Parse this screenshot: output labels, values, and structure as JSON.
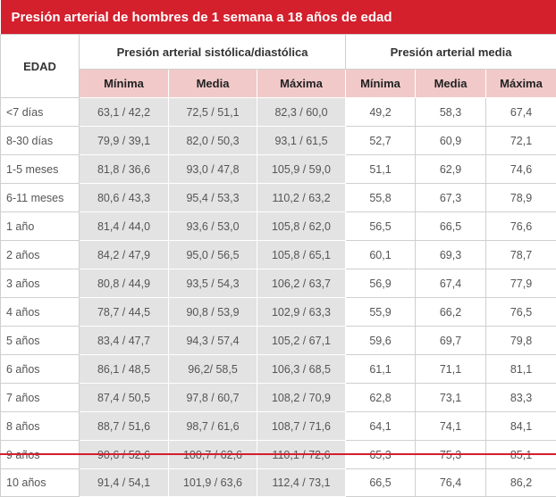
{
  "title": "Presión arterial de hombres de 1 semana a 18 años de edad",
  "headers": {
    "edad": "EDAD",
    "group_sys": "Presión arterial sistólica/diastólica",
    "group_mean": "Presión arterial media",
    "sub": [
      "Mínima",
      "Media",
      "Máxima",
      "Mínima",
      "Media",
      "Máxima"
    ]
  },
  "rows": [
    {
      "age": "<7 días",
      "sys_min": "63,1 / 42,2",
      "sys_med": "72,5 / 51,1",
      "sys_max": "82,3 / 60,0",
      "m_min": "49,2",
      "m_med": "58,3",
      "m_max": "67,4"
    },
    {
      "age": "8-30 días",
      "sys_min": "79,9 / 39,1",
      "sys_med": "82,0 / 50,3",
      "sys_max": "93,1 / 61,5",
      "m_min": "52,7",
      "m_med": "60,9",
      "m_max": "72,1"
    },
    {
      "age": "1-5 meses",
      "sys_min": "81,8 / 36,6",
      "sys_med": "93,0 / 47,8",
      "sys_max": "105,9 / 59,0",
      "m_min": "51,1",
      "m_med": "62,9",
      "m_max": "74,6"
    },
    {
      "age": "6-11 meses",
      "sys_min": "80,6 / 43,3",
      "sys_med": "95,4 / 53,3",
      "sys_max": "110,2 / 63,2",
      "m_min": "55,8",
      "m_med": "67,3",
      "m_max": "78,9"
    },
    {
      "age": "1 año",
      "sys_min": "81,4 / 44,0",
      "sys_med": "93,6 / 53,0",
      "sys_max": "105,8 / 62,0",
      "m_min": "56,5",
      "m_med": "66,5",
      "m_max": "76,6"
    },
    {
      "age": "2 años",
      "sys_min": "84,2 / 47,9",
      "sys_med": "95,0 / 56,5",
      "sys_max": "105,8 / 65,1",
      "m_min": "60,1",
      "m_med": "69,3",
      "m_max": "78,7"
    },
    {
      "age": "3 años",
      "sys_min": "80,8 / 44,9",
      "sys_med": "93,5 / 54,3",
      "sys_max": "106,2 / 63,7",
      "m_min": "56,9",
      "m_med": "67,4",
      "m_max": "77,9"
    },
    {
      "age": "4 años",
      "sys_min": "78,7 / 44,5",
      "sys_med": "90,8 / 53,9",
      "sys_max": "102,9 / 63,3",
      "m_min": "55,9",
      "m_med": "66,2",
      "m_max": "76,5"
    },
    {
      "age": "5 años",
      "sys_min": "83,4 / 47,7",
      "sys_med": "94,3 / 57,4",
      "sys_max": "105,2 / 67,1",
      "m_min": "59,6",
      "m_med": "69,7",
      "m_max": "79,8"
    },
    {
      "age": "6 años",
      "sys_min": "86,1 / 48,5",
      "sys_med": "96,2/ 58,5",
      "sys_max": "106,3 / 68,5",
      "m_min": "61,1",
      "m_med": "71,1",
      "m_max": "81,1"
    },
    {
      "age": "7 años",
      "sys_min": "87,4 / 50,5",
      "sys_med": "97,8 / 60,7",
      "sys_max": "108,2 / 70,9",
      "m_min": "62,8",
      "m_med": "73,1",
      "m_max": "83,3"
    },
    {
      "age": "8 años",
      "sys_min": "88,7 / 51,6",
      "sys_med": "98,7 / 61,6",
      "sys_max": "108,7 / 71,6",
      "m_min": "64,1",
      "m_med": "74,1",
      "m_max": "84,1"
    },
    {
      "age": "9 años",
      "sys_min": "90,6 / 52,6",
      "sys_med": "100,7 / 62,6",
      "sys_max": "110,1 / 72,6",
      "m_min": "65,3",
      "m_med": "75,3",
      "m_max": "85,1"
    },
    {
      "age": "10 años",
      "sys_min": "91,4 / 54,1",
      "sys_med": "101,9 / 63,6",
      "sys_max": "112,4 / 73,1",
      "m_min": "66,5",
      "m_med": "76,4",
      "m_max": "86,2"
    }
  ],
  "colors": {
    "accent": "#d41f2c",
    "subheader": "#f1c9c9",
    "shaded": "#e3e3e3"
  }
}
